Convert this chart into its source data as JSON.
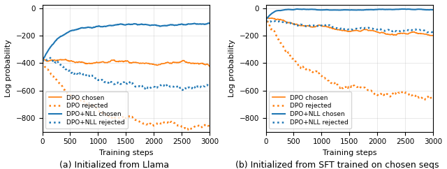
{
  "orange_color": "#ff7f0e",
  "blue_color": "#1f77b4",
  "figsize": [
    6.4,
    2.42
  ],
  "dpi": 100,
  "xlabel": "Training steps",
  "ylabel": "Log probability",
  "xlim": [
    0,
    3000
  ],
  "xticks": [
    0,
    500,
    1000,
    1500,
    2000,
    2500,
    3000
  ],
  "subplot_a_title": "(a) Initialized from Llama",
  "subplot_b_title": "(b) Initialized from SFT trained on chosen seqs",
  "legend_labels": [
    "DPO chosen",
    "DPO rejected",
    "DPO+NLL chosen",
    "DPO+NLL rejected"
  ],
  "subplot_a_ylim": [
    -900,
    25
  ],
  "subplot_a_yticks": [
    0,
    -200,
    -400,
    -600,
    -800
  ],
  "subplot_b_ylim": [
    -900,
    25
  ],
  "subplot_b_yticks": [
    0,
    -200,
    -400,
    -600,
    -800
  ]
}
